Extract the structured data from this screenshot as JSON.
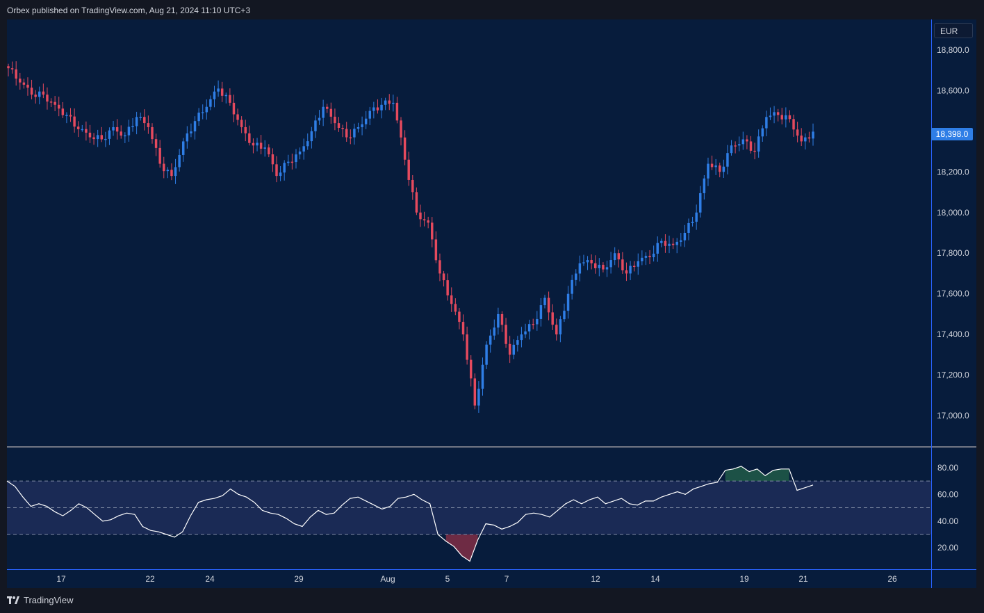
{
  "header": {
    "published": "Orbex published on TradingView.com, Aug 21, 2024 11:10 UTC+3"
  },
  "footer": {
    "brand": "TradingView"
  },
  "currency": "EUR",
  "last_price_label": "18,398.0",
  "colors": {
    "bg": "#071c3c",
    "up": "#2f7ee6",
    "down": "#e54a5e",
    "rsi_band": "#1a2a55",
    "rsi_line": "#ffffff",
    "page": "#131722"
  },
  "chart_data": [
    {
      "type": "candlestick",
      "title": "",
      "ylim": [
        16850,
        18950
      ],
      "yticks": [
        "18,800.0",
        "18,600.0",
        "18,400.0",
        "18,200.0",
        "18,000.0",
        "17,800.0",
        "17,600.0",
        "17,400.0",
        "17,200.0",
        "17,000.0"
      ],
      "xticks": [
        "17",
        "22",
        "24",
        "29",
        "Aug",
        "5",
        "7",
        "12",
        "14",
        "19",
        "21",
        "26"
      ],
      "last_price": 18398,
      "anchors": [
        18710,
        18640,
        18580,
        18580,
        18530,
        18480,
        18410,
        18370,
        18360,
        18420,
        18380,
        18470,
        18420,
        18240,
        18180,
        18350,
        18450,
        18520,
        18610,
        18540,
        18420,
        18330,
        18320,
        18180,
        18250,
        18300,
        18400,
        18520,
        18440,
        18370,
        18420,
        18500,
        18530,
        18540,
        18260,
        18000,
        17950,
        17700,
        17550,
        17400,
        17050,
        17350,
        17500,
        17300,
        17400,
        17450,
        17580,
        17400,
        17600,
        17750,
        17750,
        17720,
        17800,
        17700,
        17760,
        17780,
        17860,
        17840,
        17900,
        18000,
        18240,
        18200,
        18330,
        18360,
        18300,
        18470,
        18480,
        18460,
        18350,
        18398
      ],
      "candles_per_step": 3
    },
    {
      "type": "line",
      "title": "",
      "ylim": [
        4,
        95
      ],
      "yticks": [
        "80.00",
        "60.00",
        "40.00",
        "20.00"
      ],
      "levels": [
        70,
        50,
        30
      ],
      "overbought": 70,
      "oversold": 30,
      "values": [
        70,
        66,
        58,
        51,
        53,
        51,
        47,
        44,
        48,
        53,
        50,
        45,
        40,
        41,
        44,
        46,
        45,
        36,
        33,
        32,
        30,
        28,
        32,
        44,
        54,
        56,
        57,
        59,
        64,
        60,
        58,
        54,
        48,
        46,
        45,
        42,
        38,
        36,
        43,
        48,
        45,
        46,
        52,
        57,
        58,
        55,
        52,
        49,
        51,
        57,
        58,
        60,
        56,
        53,
        30,
        25,
        21,
        14,
        10,
        26,
        38,
        37,
        34,
        36,
        39,
        45,
        46,
        45,
        43,
        48,
        53,
        56,
        53,
        56,
        58,
        53,
        55,
        57,
        53,
        52,
        55,
        55,
        58,
        60,
        62,
        60,
        64,
        66,
        68,
        69,
        78,
        79,
        81,
        77,
        79,
        74,
        78,
        79,
        79,
        63,
        65,
        67
      ]
    }
  ]
}
